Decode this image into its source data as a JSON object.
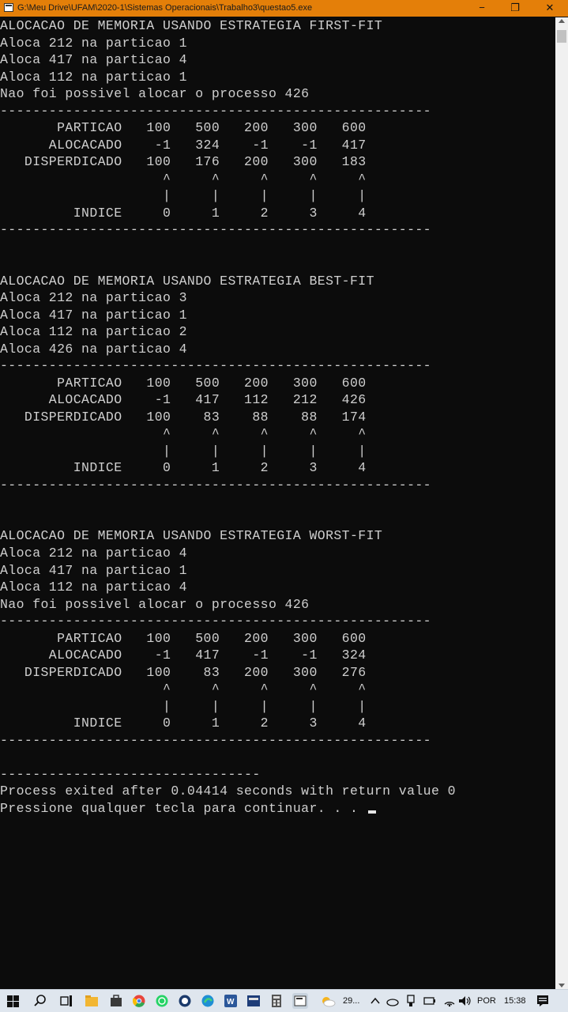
{
  "window": {
    "title": "G:\\Meu Drive\\UFAM\\2020-1\\Sistemas Operacionais\\Trabalho3\\questao5.exe",
    "minimize_glyph": "−",
    "restore_glyph": "❐",
    "close_glyph": "✕"
  },
  "console": {
    "lines": [
      "ALOCACAO DE MEMORIA USANDO ESTRATEGIA FIRST-FIT",
      "Aloca 212 na particao 1",
      "Aloca 417 na particao 4",
      "Aloca 112 na particao 1",
      "Nao foi possivel alocar o processo 426",
      "-----------------------------------------------------",
      "       PARTICAO   100   500   200   300   600",
      "      ALOCACADO    -1   324    -1    -1   417",
      "   DISPERDICADO   100   176   200   300   183",
      "                    ^     ^     ^     ^     ^",
      "                    |     |     |     |     |",
      "         INDICE     0     1     2     3     4",
      "-----------------------------------------------------",
      "",
      "",
      "ALOCACAO DE MEMORIA USANDO ESTRATEGIA BEST-FIT",
      "Aloca 212 na particao 3",
      "Aloca 417 na particao 1",
      "Aloca 112 na particao 2",
      "Aloca 426 na particao 4",
      "-----------------------------------------------------",
      "       PARTICAO   100   500   200   300   600",
      "      ALOCACADO    -1   417   112   212   426",
      "   DISPERDICADO   100    83    88    88   174",
      "                    ^     ^     ^     ^     ^",
      "                    |     |     |     |     |",
      "         INDICE     0     1     2     3     4",
      "-----------------------------------------------------",
      "",
      "",
      "ALOCACAO DE MEMORIA USANDO ESTRATEGIA WORST-FIT",
      "Aloca 212 na particao 4",
      "Aloca 417 na particao 1",
      "Aloca 112 na particao 4",
      "Nao foi possivel alocar o processo 426",
      "-----------------------------------------------------",
      "       PARTICAO   100   500   200   300   600",
      "      ALOCACADO    -1   417    -1    -1   324",
      "   DISPERDICADO   100    83   200   300   276",
      "                    ^     ^     ^     ^     ^",
      "                    |     |     |     |     |",
      "         INDICE     0     1     2     3     4",
      "-----------------------------------------------------",
      "",
      "--------------------------------",
      "Process exited after 0.04414 seconds with return value 0",
      "Pressione qualquer tecla para continuar. . . "
    ]
  },
  "taskbar": {
    "weather_temp": "29...",
    "language": "POR",
    "time": "15:38",
    "colors": {
      "files": "#f2b632",
      "store": "#3a3a3a",
      "chrome": "#e8453c",
      "whatsapp": "#25d366",
      "edge": "#1f8fd4",
      "word": "#2b579a"
    }
  }
}
